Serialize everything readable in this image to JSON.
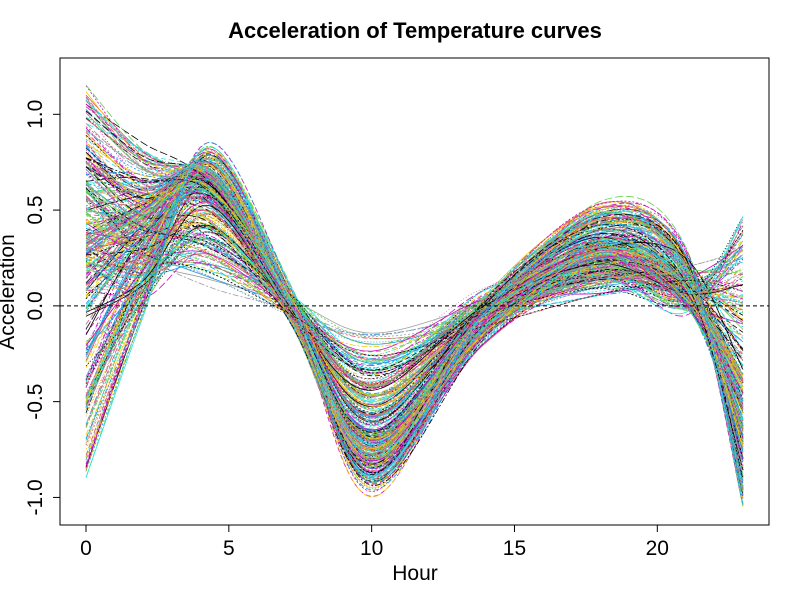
{
  "chart_data": {
    "type": "line",
    "title": "Acceleration of Temperature curves",
    "xlabel": "Hour",
    "ylabel": "Acceleration",
    "xlim": [
      0,
      23
    ],
    "ylim": [
      -1.05,
      1.2
    ],
    "x_ticks": [
      0,
      5,
      10,
      15,
      20
    ],
    "x_tick_labels": [
      "0",
      "5",
      "10",
      "15",
      "20"
    ],
    "y_ticks": [
      -1.0,
      -0.5,
      0.0,
      0.5,
      1.0
    ],
    "y_tick_labels": [
      "-1.0",
      "-0.5",
      "0.0",
      "0.5",
      "1.0"
    ],
    "grid": false,
    "reference_line": {
      "y": 0.0,
      "style": "dashed",
      "color": "#000000"
    },
    "series_count": 365,
    "palette": [
      "#000000",
      "#DF536B",
      "#61D04F",
      "#2297E6",
      "#28E2E5",
      "#CD0BBC",
      "#F5C710",
      "#9E9E9E"
    ],
    "x": [
      0,
      2,
      4.3,
      7.2,
      10,
      14,
      18,
      21,
      23
    ],
    "series": [
      {
        "values": [
          0.35,
          0.5,
          0.7,
          0.0,
          -0.7,
          -0.1,
          0.25,
          0.05,
          -0.4
        ]
      },
      {
        "values": [
          1.1,
          0.8,
          0.6,
          -0.05,
          -0.8,
          0.0,
          0.45,
          0.2,
          -0.95
        ]
      },
      {
        "values": [
          -0.5,
          0.2,
          0.75,
          0.0,
          -0.75,
          -0.05,
          0.3,
          0.1,
          -0.5
        ]
      },
      {
        "values": [
          0.6,
          0.3,
          0.15,
          0.0,
          -0.2,
          -0.05,
          0.1,
          0.15,
          0.25
        ]
      },
      {
        "values": [
          0.0,
          0.4,
          0.55,
          0.0,
          -0.5,
          -0.05,
          0.3,
          0.05,
          -0.6
        ]
      },
      {
        "values": [
          0.8,
          0.55,
          0.65,
          -0.05,
          -0.85,
          -0.15,
          0.2,
          0.05,
          -0.7
        ]
      },
      {
        "values": [
          -0.85,
          0.0,
          0.8,
          0.05,
          -0.95,
          -0.05,
          0.5,
          0.25,
          -1.05
        ]
      },
      {
        "values": [
          0.2,
          0.1,
          0.35,
          0.0,
          -0.35,
          0.05,
          0.15,
          0.0,
          0.45
        ]
      }
    ]
  }
}
